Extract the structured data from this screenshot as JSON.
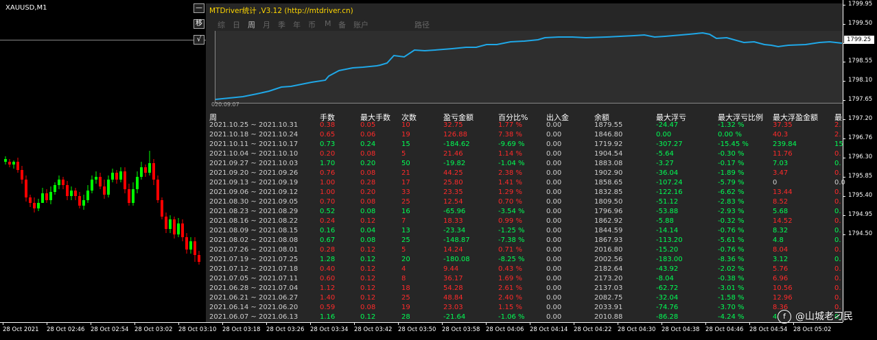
{
  "chart": {
    "symbol": "XAUUSD,M1",
    "current_price": "1799.25",
    "price_labels": [
      "1799.95",
      "1799.50",
      "1799.00",
      "1798.55",
      "1798.10",
      "1797.65",
      "1797.20",
      "1796.76",
      "1796.30",
      "1795.85",
      "1795.40",
      "1794.95",
      "1794.50"
    ],
    "time_labels": [
      "28 Oct 2021",
      "28 Oct 02:46",
      "28 Oct 02:54",
      "28 Oct 03:02",
      "28 Oct 03:10",
      "28 Oct 03:18",
      "28 Oct 03:26",
      "28 Oct 03:34",
      "28 Oct 03:42",
      "28 Oct 03:50",
      "28 Oct 03:58",
      "28 Oct 04:06",
      "28 Oct 04:14",
      "28 Oct 04:22",
      "28 Oct 04:30",
      "28 Oct 04:38",
      "28 Oct 04:46",
      "28 Oct 04:54",
      "28 Oct 05:02"
    ],
    "bull_color": "#00ff00",
    "bear_color": "#ff0000"
  },
  "side_buttons": {
    "minimize": "—",
    "move": "移",
    "check": "√"
  },
  "panel": {
    "title": "MTDriver统计 ,V3.12 (http://mtdriver.cn)",
    "tabs": [
      {
        "label": "综",
        "active": false
      },
      {
        "label": "日",
        "active": false
      },
      {
        "label": "周",
        "active": true
      },
      {
        "label": "月",
        "active": false
      },
      {
        "label": "季",
        "active": false
      },
      {
        "label": "年",
        "active": false
      },
      {
        "label": "币",
        "active": false
      },
      {
        "label": "M",
        "active": false
      },
      {
        "label": "备",
        "active": false
      },
      {
        "label": "账户",
        "active": false
      },
      {
        "label": "路径",
        "active": false
      }
    ],
    "curve_start_label": "020.09.07",
    "curve_color": "#1fa8e8",
    "headers": [
      "周",
      "手数",
      "最大手数",
      "次数",
      "盈亏金额",
      "百分比%",
      "出入金",
      "余额",
      "最大浮亏",
      "最大浮亏比例",
      "最大浮盈金额",
      "最"
    ],
    "rows": [
      {
        "c": [
          "2021.10.25 ~ 2021.10.31",
          "0.38",
          "0.05",
          "10",
          "32.75",
          "1.77 %",
          "0.00",
          "1879.55",
          "-24.47",
          "-1.32 %",
          "37.35",
          "2."
        ],
        "t": "r"
      },
      {
        "c": [
          "2021.10.18 ~ 2021.10.24",
          "0.65",
          "0.06",
          "19",
          "126.88",
          "7.38 %",
          "0.00",
          "1846.80",
          "0.00",
          "0.00 %",
          "40.3",
          "2."
        ],
        "t": "r"
      },
      {
        "c": [
          "2021.10.11 ~ 2021.10.17",
          "0.73",
          "0.24",
          "15",
          "-184.62",
          "-9.69 %",
          "0.00",
          "1719.92",
          "-307.27",
          "-15.45 %",
          "239.84",
          "15"
        ],
        "t": "g"
      },
      {
        "c": [
          "2021.10.04 ~ 2021.10.10",
          "0.20",
          "0.08",
          "5",
          "21.46",
          "1.14 %",
          "0.00",
          "1904.54",
          "-5.64",
          "-0.30 %",
          "11.76",
          "0."
        ],
        "t": "r"
      },
      {
        "c": [
          "2021.09.27 ~ 2021.10.03",
          "1.70",
          "0.20",
          "50",
          "-19.82",
          "-1.04 %",
          "0.00",
          "1883.08",
          "-3.27",
          "-0.17 %",
          "7.03",
          "0."
        ],
        "t": "g"
      },
      {
        "c": [
          "2021.09.20 ~ 2021.09.26",
          "0.76",
          "0.08",
          "21",
          "44.25",
          "2.38 %",
          "0.00",
          "1902.90",
          "-36.04",
          "-1.89 %",
          "3.47",
          "0."
        ],
        "t": "r"
      },
      {
        "c": [
          "2021.09.13 ~ 2021.09.19",
          "1.00",
          "0.28",
          "17",
          "25.80",
          "1.41 %",
          "0.00",
          "1858.65",
          "-107.24",
          "-5.79 %",
          "0",
          "0.0"
        ],
        "t": "r"
      },
      {
        "c": [
          "2021.09.06 ~ 2021.09.12",
          "1.00",
          "0.20",
          "33",
          "23.35",
          "1.29 %",
          "0.00",
          "1832.85",
          "-122.16",
          "-6.62 %",
          "13.44",
          "0."
        ],
        "t": "r"
      },
      {
        "c": [
          "2021.08.30 ~ 2021.09.05",
          "0.70",
          "0.08",
          "25",
          "12.54",
          "0.70 %",
          "0.00",
          "1809.50",
          "-51.12",
          "-2.83 %",
          "8.52",
          "0."
        ],
        "t": "r"
      },
      {
        "c": [
          "2021.08.23 ~ 2021.08.29",
          "0.52",
          "0.08",
          "16",
          "-65.96",
          "-3.54 %",
          "0.00",
          "1796.96",
          "-53.88",
          "-2.93 %",
          "5.68",
          "0."
        ],
        "t": "g"
      },
      {
        "c": [
          "2021.08.16 ~ 2021.08.22",
          "0.24",
          "0.12",
          "7",
          "18.33",
          "0.99 %",
          "0.00",
          "1862.92",
          "-5.88",
          "-0.32 %",
          "14.52",
          "0."
        ],
        "t": "r"
      },
      {
        "c": [
          "2021.08.09 ~ 2021.08.15",
          "0.16",
          "0.04",
          "13",
          "-23.34",
          "-1.25 %",
          "0.00",
          "1844.59",
          "-14.14",
          "-0.76 %",
          "8.32",
          "0."
        ],
        "t": "g"
      },
      {
        "c": [
          "2021.08.02 ~ 2021.08.08",
          "0.67",
          "0.08",
          "25",
          "-148.87",
          "-7.38 %",
          "0.00",
          "1867.93",
          "-113.20",
          "-5.61 %",
          "4.8",
          "0."
        ],
        "t": "g"
      },
      {
        "c": [
          "2021.07.26 ~ 2021.08.01",
          "0.28",
          "0.12",
          "5",
          "14.24",
          "0.71 %",
          "0.00",
          "2016.80",
          "-15.20",
          "-0.76 %",
          "8.04",
          "0."
        ],
        "t": "r"
      },
      {
        "c": [
          "2021.07.19 ~ 2021.07.25",
          "1.28",
          "0.12",
          "20",
          "-180.08",
          "-8.25 %",
          "0.00",
          "2002.56",
          "-183.00",
          "-8.36 %",
          "3.12",
          "0."
        ],
        "t": "g"
      },
      {
        "c": [
          "2021.07.12 ~ 2021.07.18",
          "0.40",
          "0.12",
          "4",
          "9.44",
          "0.43 %",
          "0.00",
          "2182.64",
          "-43.92",
          "-2.02 %",
          "5.76",
          "0."
        ],
        "t": "r"
      },
      {
        "c": [
          "2021.07.05 ~ 2021.07.11",
          "0.60",
          "0.12",
          "8",
          "36.17",
          "1.69 %",
          "0.00",
          "2173.20",
          "-8.04",
          "-0.38 %",
          "6.96",
          "0."
        ],
        "t": "r"
      },
      {
        "c": [
          "2021.06.28 ~ 2021.07.04",
          "1.12",
          "0.12",
          "18",
          "54.28",
          "2.61 %",
          "0.00",
          "2137.03",
          "-62.72",
          "-3.01 %",
          "10.56",
          "0."
        ],
        "t": "r"
      },
      {
        "c": [
          "2021.06.21 ~ 2021.06.27",
          "1.40",
          "0.12",
          "25",
          "48.84",
          "2.40 %",
          "0.00",
          "2082.75",
          "-32.04",
          "-1.58 %",
          "12.96",
          "0."
        ],
        "t": "r"
      },
      {
        "c": [
          "2021.06.14 ~ 2021.06.20",
          "0.59",
          "0.08",
          "19",
          "23.03",
          "1.15 %",
          "0.00",
          "2033.91",
          "-74.76",
          "-3.70 %",
          "8.36",
          "0."
        ],
        "t": "r"
      },
      {
        "c": [
          "2021.06.07 ~ 2021.06.13",
          "1.16",
          "0.12",
          "28",
          "-21.64",
          "-1.06 %",
          "0.00",
          "2010.88",
          "-86.28",
          "-4.24 %",
          "4.",
          "0."
        ],
        "t": "g"
      }
    ]
  },
  "watermark": {
    "logo": "f",
    "text": "@山城老刁民"
  }
}
